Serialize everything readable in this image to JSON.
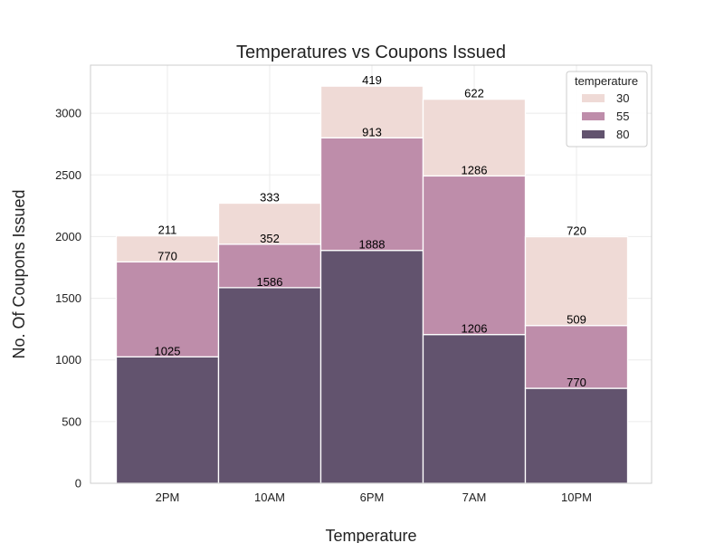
{
  "chart_data": {
    "type": "bar",
    "stacked": true,
    "title": "Temperatures vs Coupons Issued",
    "xlabel": "Temperature",
    "ylabel": "No. Of Coupons Issued",
    "categories": [
      "2PM",
      "10AM",
      "6PM",
      "7AM",
      "10PM"
    ],
    "series": [
      {
        "name": "80",
        "values": [
          1025,
          1586,
          1888,
          1206,
          770
        ],
        "color": "#62536e"
      },
      {
        "name": "55",
        "values": [
          770,
          352,
          913,
          1286,
          509
        ],
        "color": "#be8daa"
      },
      {
        "name": "30",
        "values": [
          211,
          333,
          419,
          622,
          720
        ],
        "color": "#efdad6"
      }
    ],
    "ylim": [
      0,
      3390
    ],
    "yticks": [
      0,
      500,
      1000,
      1500,
      2000,
      2500,
      3000
    ],
    "grid": true,
    "legend": {
      "title": "temperature",
      "placement": "top-right",
      "order": [
        "30",
        "55",
        "80"
      ]
    }
  }
}
